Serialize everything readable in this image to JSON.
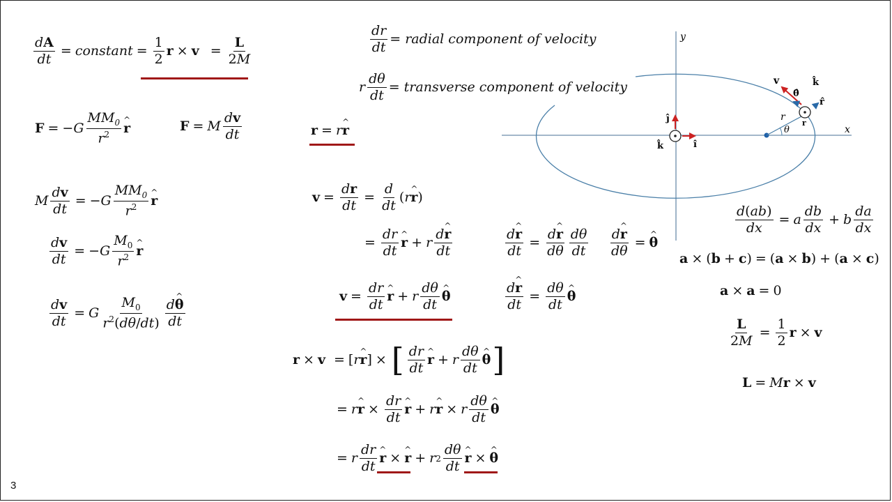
{
  "slide": {
    "number": "3"
  },
  "labels": {
    "constant": "constant",
    "radial": "= radial component of velocity",
    "transverse": "= transverse component of velocity",
    "zero": "0"
  },
  "diagram": {
    "axis_x": "x",
    "axis_y": "y",
    "r_label": "r",
    "theta_label": "θ",
    "vec_v": "v",
    "vec_theta": "θ̂",
    "vec_k": "k̂",
    "vec_r": "r̂",
    "vec_r_small": "r",
    "vec_j": "ĵ",
    "vec_i": "î",
    "vec_k_origin": "k̂"
  },
  "colors": {
    "underline": "#a01818",
    "ellipse": "#4a7fa8",
    "axis": "#6a8caa",
    "arrow_red": "#cc2222",
    "arrow_blue": "#2a6aa8"
  }
}
